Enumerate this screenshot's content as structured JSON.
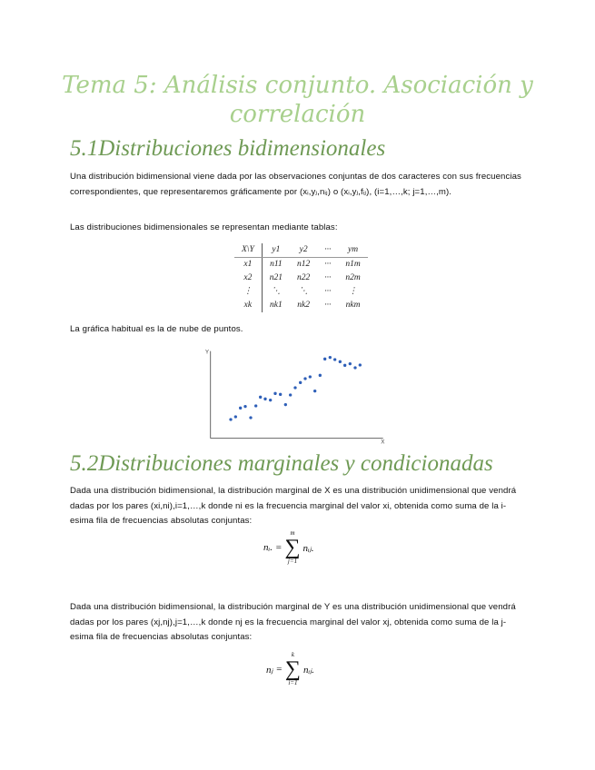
{
  "title": "Tema 5: Análisis conjunto. Asociación y correlación",
  "section1": {
    "heading": "5.1Distribuciones bidimensionales",
    "para1": "Una distribución bidimensional viene dada por las observaciones conjuntas de dos caracteres con sus frecuencias correspondientes, que representaremos gráficamente por (xᵢ,yⱼ,nᵢⱼ) o (xᵢ,yⱼ,fᵢⱼ), (i=1,…,k; j=1,…,m).",
    "para2": "Las distribuciones bidimensionales se representan mediante tablas:",
    "table": {
      "header": [
        "X\\Y",
        "y1",
        "y2",
        "···",
        "ym"
      ],
      "rows": [
        [
          "x1",
          "n11",
          "n12",
          "···",
          "n1m"
        ],
        [
          "x2",
          "n21",
          "n22",
          "···",
          "n2m"
        ],
        [
          "⋮",
          "⋱",
          "⋱",
          "···",
          "⋮"
        ],
        [
          "xk",
          "nk1",
          "nk2",
          "···",
          "nkm"
        ]
      ]
    },
    "para3": "La gráfica habitual es la de nube de puntos.",
    "scatter": {
      "y_axis_label": "Y",
      "x_axis_label": "X",
      "point_color": "#2e5fb8"
    }
  },
  "section2": {
    "heading": "5.2Distribuciones marginales y condicionadas",
    "para1": "Dada una distribución bidimensional, la distribución marginal de X es una distribución unidimensional que vendrá dadas por los pares (xi,ni),i=1,…,k donde ni es la frecuencia marginal del valor xi, obtenida como suma de la i-esima fila de frecuencias absolutas conjuntas:",
    "formula1": {
      "lhs": "nᵢ.",
      "eq": "=",
      "upper": "m",
      "lower": "j=1",
      "term": "nᵢⱼ."
    },
    "para2": "Dada una distribución bidimensional, la distribución marginal de Y es una distribución unidimensional que vendrá dadas por los pares (xj,nj),j=1,…,k donde nj es la frecuencia marginal del valor xj, obtenida como suma de la j-esima fila de frecuencias absolutas conjuntas:",
    "formula2": {
      "lhs": "nⱼ",
      "eq": "=",
      "upper": "k",
      "lower": "i=1",
      "term": "nᵢⱼ."
    }
  },
  "colors": {
    "title": "#a8d08d",
    "heading": "#6f9a55"
  }
}
